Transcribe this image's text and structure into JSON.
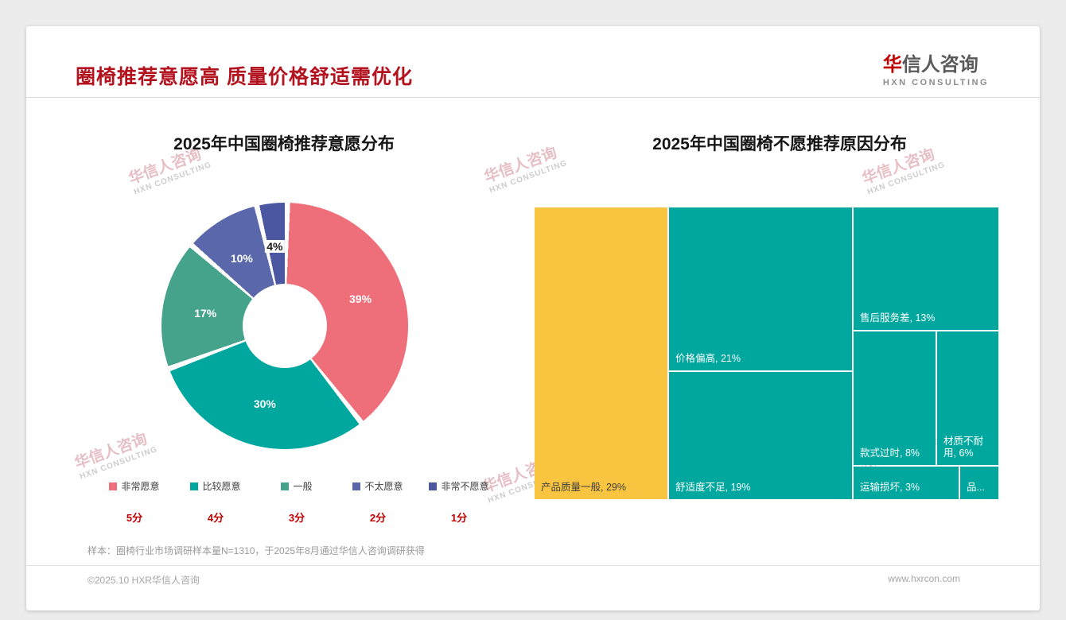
{
  "header": {
    "title": "圈椅推荐意愿高 质量价格舒适需优化",
    "logo": {
      "cn_red": "华",
      "cn_rest": "信人咨询",
      "en": "HXN CONSULTING"
    }
  },
  "watermark": {
    "line1": "华信人咨询",
    "line2": "HXN CONSULTING"
  },
  "left_chart": {
    "title": "2025年中国圈椅推荐意愿分布"
  },
  "right_chart": {
    "title": "2025年中国圈椅不愿推荐原因分布"
  },
  "footnote": "样本：圈椅行业市场调研样本量N=1310，于2025年8月通过华信人咨询调研获得",
  "footer": {
    "copyright": "©2025.10 HXR华信人咨询",
    "website": "www.hxrcon.com"
  },
  "theme": {
    "title_red": "#b3131f",
    "score_red": "#c00000",
    "teal": "#00a79e",
    "yellow": "#f9c440",
    "watermark_pink": "#cf7f8a",
    "page_background": "#ececec"
  },
  "chart_data": [
    {
      "type": "pie",
      "subtype": "donut",
      "title": "2025年中国圈椅推荐意愿分布",
      "labels": [
        "非常愿意",
        "比较愿意",
        "一般",
        "不太愿意",
        "非常不愿意"
      ],
      "values": [
        39,
        30,
        17,
        10,
        4
      ],
      "value_labels": [
        "39%",
        "30%",
        "17%",
        "10%",
        "4%"
      ],
      "scores": [
        "5分",
        "4分",
        "3分",
        "2分",
        "1分"
      ],
      "colors": [
        "#ee6e79",
        "#00a79e",
        "#45a28b",
        "#5a68ab",
        "#4b57a1"
      ],
      "label_text_colors": [
        "#ffffff",
        "#ffffff",
        "#ffffff",
        "#ffffff",
        "#1a1a1a"
      ],
      "legend_position": "bottom"
    },
    {
      "type": "treemap",
      "title": "2025年中国圈椅不愿推荐原因分布",
      "items": [
        {
          "label": "产品质量一般",
          "value": 29,
          "display": "产品质量一般, 29%",
          "color": "#f9c440",
          "text_color": "#3f3f3f"
        },
        {
          "label": "价格偏高",
          "value": 21,
          "display": "价格偏高, 21%",
          "color": "#00a79e",
          "text_color": "#ffffff"
        },
        {
          "label": "舒适度不足",
          "value": 19,
          "display": "舒适度不足, 19%",
          "color": "#00a79e",
          "text_color": "#ffffff"
        },
        {
          "label": "售后服务差",
          "value": 13,
          "display": "售后服务差, 13%",
          "color": "#00a79e",
          "text_color": "#ffffff"
        },
        {
          "label": "款式过时",
          "value": 8,
          "display": "款式过时, 8%",
          "color": "#00a79e",
          "text_color": "#ffffff"
        },
        {
          "label": "材质不耐用",
          "value": 6,
          "display": "材质不耐用, 6%",
          "color": "#00a79e",
          "text_color": "#ffffff"
        },
        {
          "label": "运输损坏",
          "value": 3,
          "display": "运输损坏, 3%",
          "color": "#00a79e",
          "text_color": "#ffffff"
        },
        {
          "label": "品...",
          "value": null,
          "display": "品...",
          "color": "#00a79e",
          "text_color": "#ffffff"
        }
      ]
    }
  ]
}
